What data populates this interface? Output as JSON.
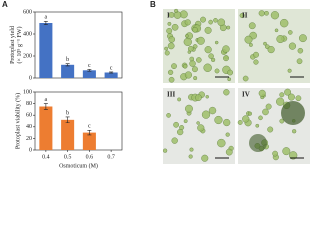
{
  "panels": {
    "a": "A",
    "b": "B"
  },
  "micrographs": [
    "I",
    "II",
    "III",
    "IV"
  ],
  "chart_data": [
    {
      "type": "bar",
      "y_label": [
        "Protoplast yield",
        "(× 10⁵ g⁻¹ FW)"
      ],
      "values": [
        500,
        120,
        70,
        50
      ],
      "errors": [
        15,
        10,
        8,
        5
      ],
      "annotations": [
        "a",
        "b",
        "c",
        "c"
      ],
      "color": "#4472c4",
      "ylim": [
        0,
        600
      ],
      "yticks": [
        0,
        200,
        400,
        600
      ]
    },
    {
      "type": "bar",
      "y_label": [
        "Protoplast viability (%)"
      ],
      "x_label": "Osmoticum (M)",
      "categories": [
        "0.4",
        "0.5",
        "0.6",
        "0.7"
      ],
      "values": [
        75,
        52,
        30,
        0
      ],
      "errors": [
        5,
        5,
        4,
        0
      ],
      "annotations": [
        "a",
        "b",
        "c",
        null
      ],
      "color": "#ed7d31",
      "ylim": [
        0,
        100
      ],
      "yticks": [
        0,
        20,
        40,
        60,
        80,
        100
      ]
    }
  ]
}
